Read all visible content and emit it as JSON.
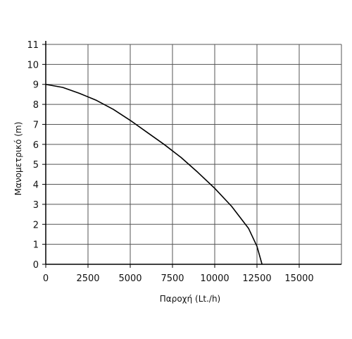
{
  "chart_data": {
    "type": "line",
    "xlabel": "Παροχή (Lt./h)",
    "ylabel": "Μανομετρικό  (m)",
    "xlim": [
      0,
      17500
    ],
    "ylim": [
      0,
      11
    ],
    "x_ticks": [
      0,
      2500,
      5000,
      7500,
      10000,
      12500,
      15000
    ],
    "y_ticks": [
      0,
      1,
      2,
      3,
      4,
      5,
      6,
      7,
      8,
      9,
      10,
      11
    ],
    "x_grid": [
      2500,
      5000,
      7500,
      10000,
      12500,
      15000,
      17500
    ],
    "grid": true,
    "series": [
      {
        "color": "#000000",
        "x": [
          0,
          1000,
          2000,
          3000,
          4000,
          5000,
          6000,
          7000,
          8000,
          9000,
          10000,
          11000,
          12000,
          12500,
          12800
        ],
        "y": [
          9.0,
          8.85,
          8.55,
          8.2,
          7.75,
          7.2,
          6.6,
          6.0,
          5.35,
          4.6,
          3.8,
          2.9,
          1.8,
          0.9,
          0.0
        ]
      }
    ]
  }
}
